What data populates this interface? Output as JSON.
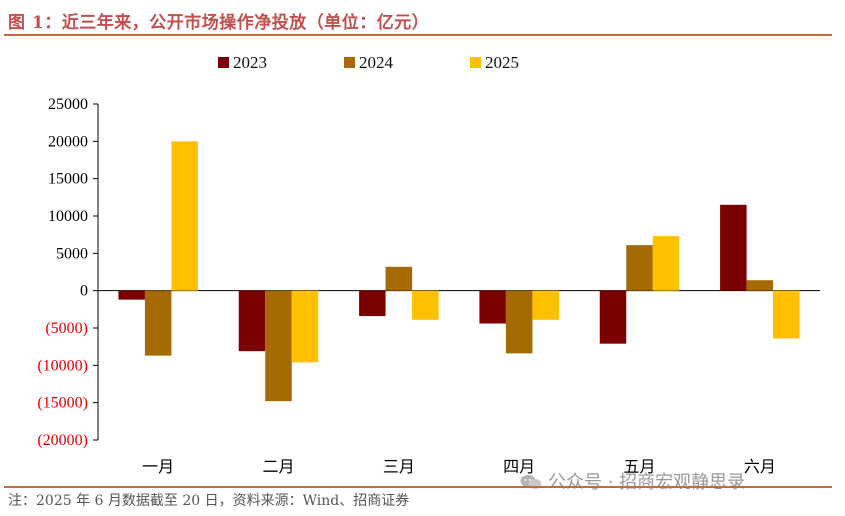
{
  "header": {
    "title": "图 1：近三年来，公开市场操作净投放（单位：亿元）"
  },
  "footer": {
    "note": "注：2025 年 6 月数据截至 20 日，资料来源：Wind、招商证券",
    "watermark": "公众号 · 招商宏观静思录"
  },
  "colors": {
    "title": "#c0504d",
    "negative_tick": "#e00000",
    "positive_tick": "#000000"
  },
  "chart_data": {
    "type": "bar",
    "categories": [
      "一月",
      "二月",
      "三月",
      "四月",
      "五月",
      "六月"
    ],
    "series": [
      {
        "name": "2023",
        "color": "#7b0000",
        "values": [
          -1200,
          -8100,
          -3400,
          -4400,
          -7100,
          11500
        ]
      },
      {
        "name": "2024",
        "color": "#a66a05",
        "values": [
          -8700,
          -14800,
          3200,
          -8400,
          6100,
          1400
        ]
      },
      {
        "name": "2025",
        "color": "#ffc000",
        "values": [
          20000,
          -9600,
          -3900,
          -3900,
          7300,
          -6400
        ]
      }
    ],
    "ylim": [
      -20000,
      25000
    ],
    "yticks": [
      25000,
      20000,
      15000,
      10000,
      5000,
      0,
      -5000,
      -10000,
      -15000,
      -20000
    ],
    "ytick_labels": [
      "25000",
      "20000",
      "15000",
      "10000",
      "5000",
      "0",
      "(5000)",
      "(10000)",
      "(15000)",
      "(20000)"
    ],
    "legend_position": "top-center",
    "grid": false
  }
}
